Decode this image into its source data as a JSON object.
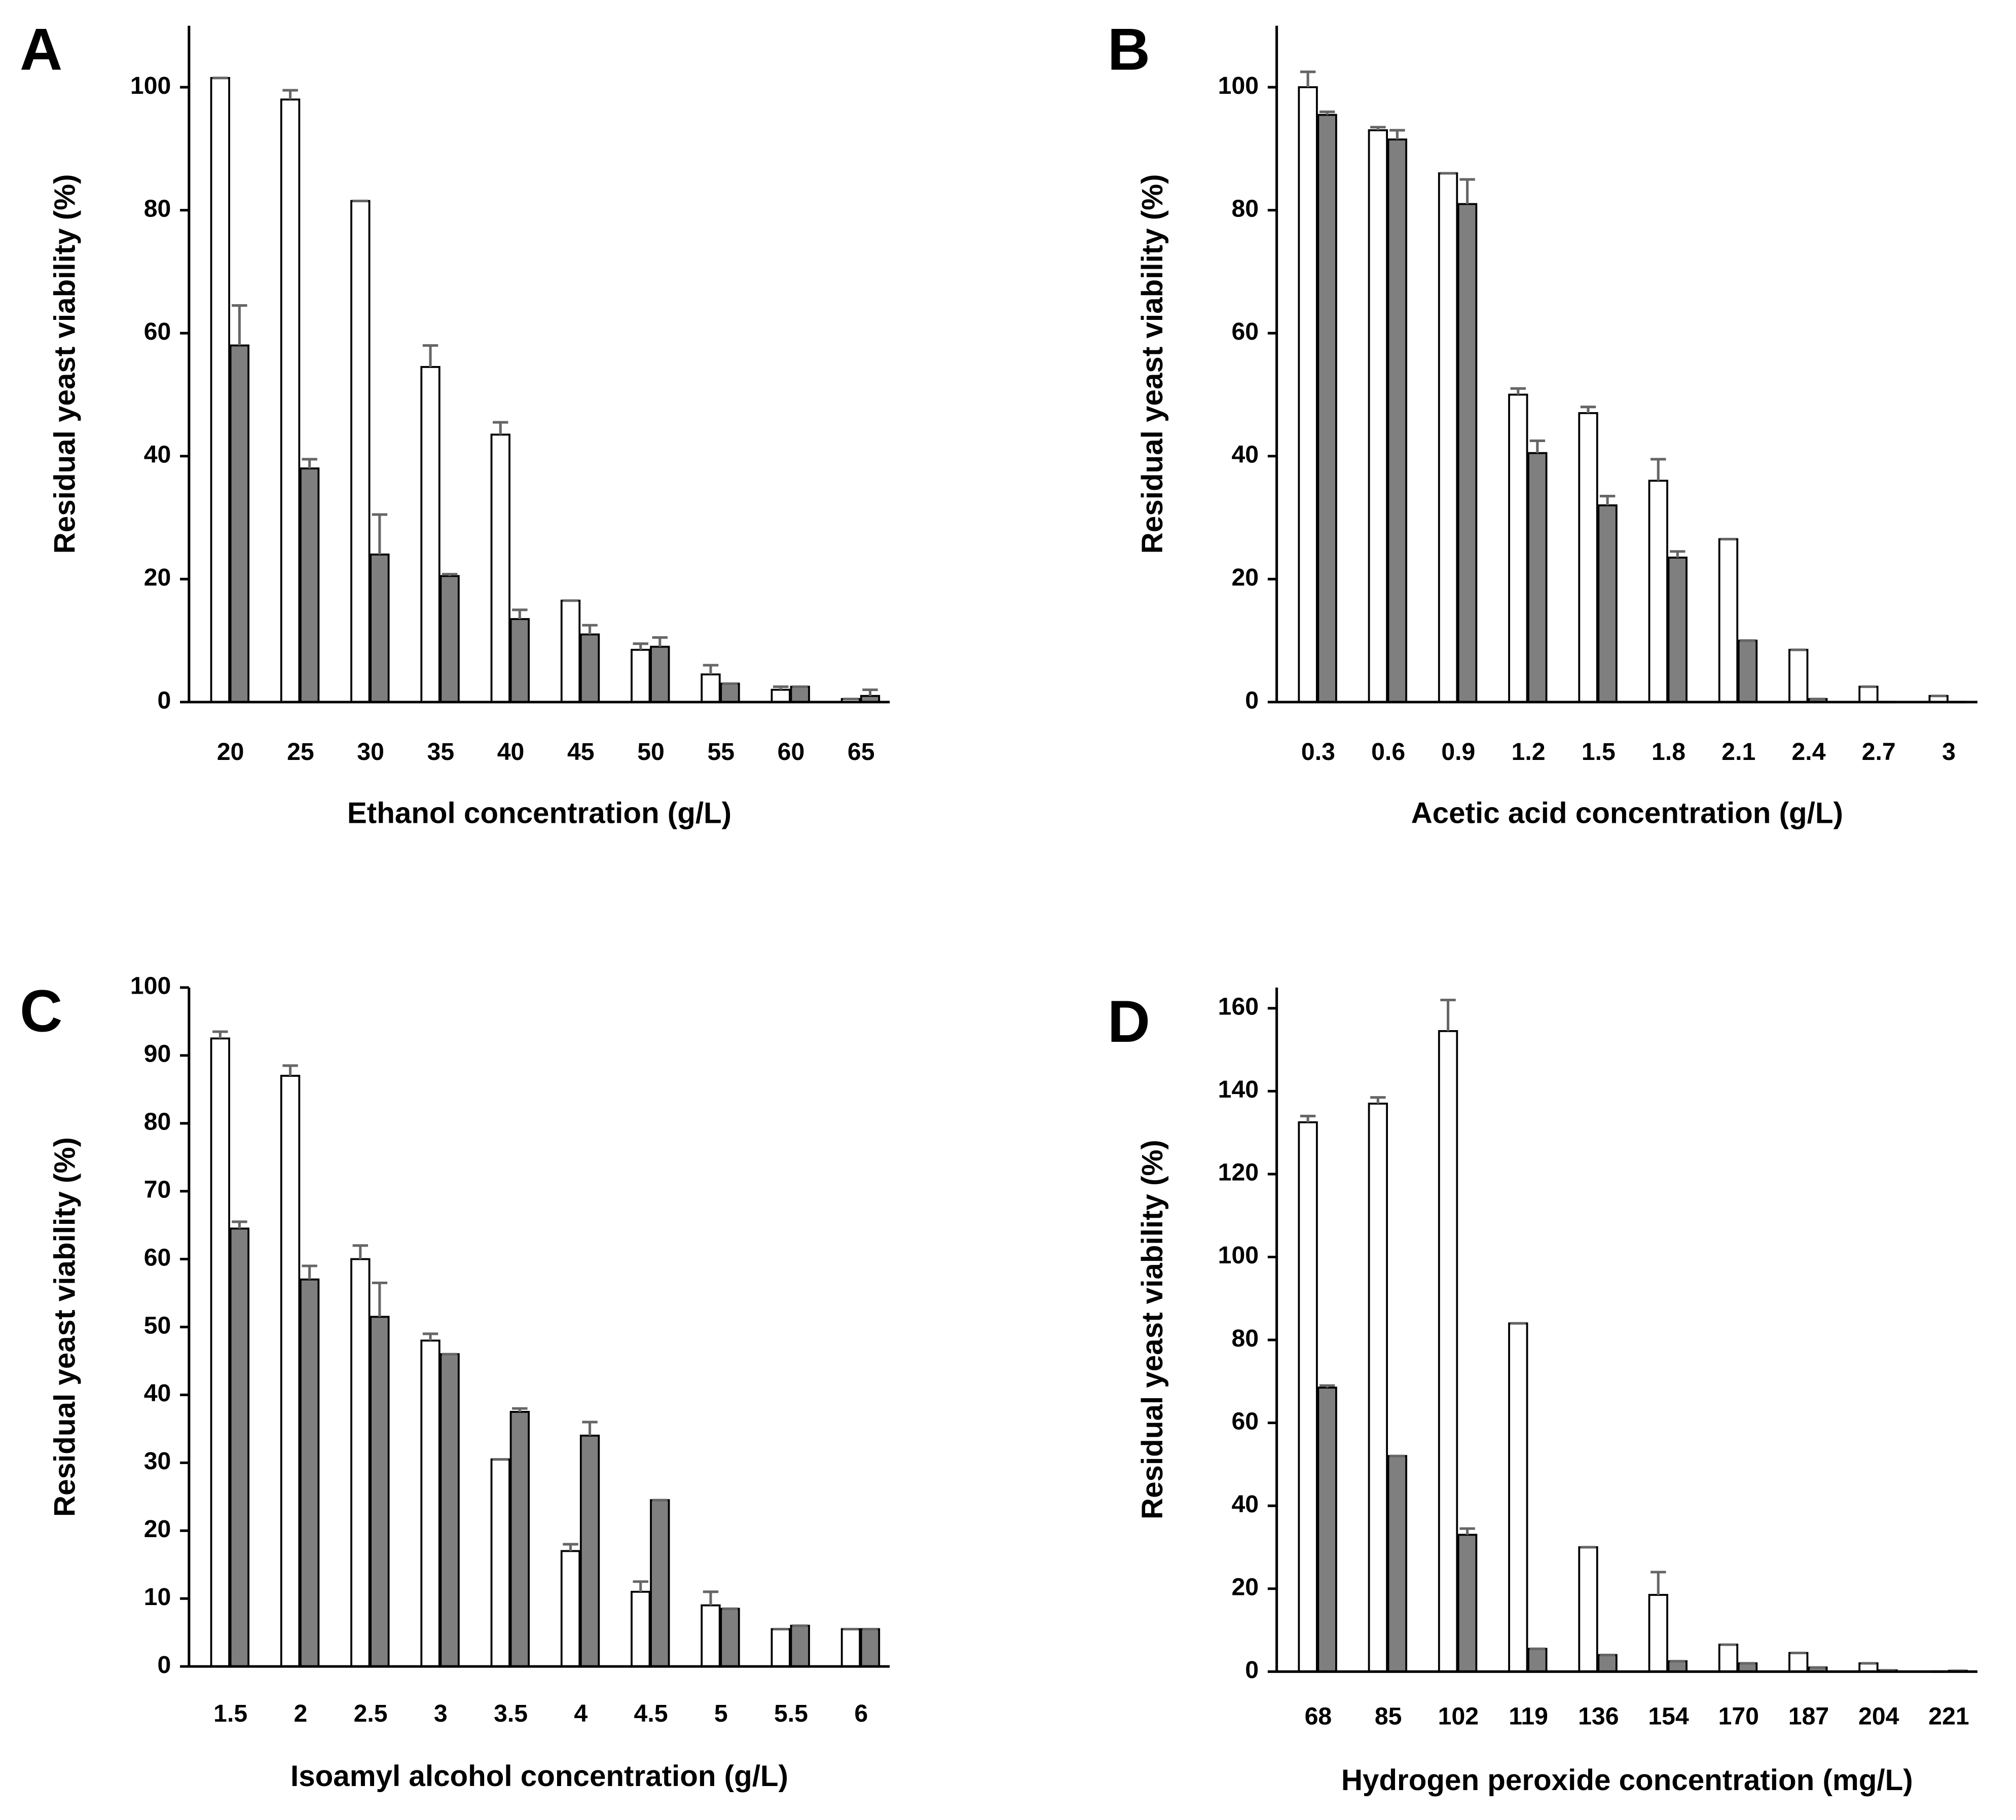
{
  "chart_data": [
    {
      "type": "bar",
      "panel": "A",
      "xlabel": "Ethanol concentration (g/L)",
      "ylabel": "Residual yeast  viability (%)",
      "categories": [
        "20",
        "25",
        "30",
        "35",
        "40",
        "45",
        "50",
        "55",
        "60",
        "65"
      ],
      "series": [
        {
          "color": "#ffffff",
          "values": [
            101.5,
            98,
            81.5,
            54.5,
            43.5,
            16.5,
            8.5,
            4.5,
            2,
            0.5
          ],
          "errors": [
            0,
            1.5,
            0,
            3.5,
            2,
            0,
            1,
            1.5,
            0.5,
            0
          ]
        },
        {
          "color": "#7f7f7f",
          "values": [
            58,
            38,
            24,
            20.5,
            13.5,
            11,
            9,
            3,
            2.5,
            1
          ],
          "errors": [
            6.5,
            1.5,
            6.5,
            0.3,
            1.5,
            1.5,
            1.5,
            0,
            0,
            1
          ]
        }
      ],
      "ylim": [
        0,
        110
      ],
      "yticks": [
        0,
        20,
        40,
        60,
        80,
        100
      ]
    },
    {
      "type": "bar",
      "panel": "B",
      "xlabel": "Acetic acid concentration (g/L)",
      "ylabel": "Residual  yeast  viability (%)",
      "categories": [
        "0.3",
        "0.6",
        "0.9",
        "1.2",
        "1.5",
        "1.8",
        "2.1",
        "2.4",
        "2.7",
        "3"
      ],
      "series": [
        {
          "color": "#ffffff",
          "values": [
            100,
            93,
            86,
            50,
            47,
            36,
            26.5,
            8.5,
            2.5,
            1
          ],
          "errors": [
            2.5,
            0.5,
            0,
            1,
            1,
            3.5,
            0,
            0,
            0,
            0
          ]
        },
        {
          "color": "#7f7f7f",
          "values": [
            95.5,
            91.5,
            81,
            40.5,
            32,
            23.5,
            10,
            0.5,
            0,
            0
          ],
          "errors": [
            0.5,
            1.5,
            4,
            2,
            1.5,
            1,
            0,
            0,
            0,
            0
          ]
        }
      ],
      "ylim": [
        0,
        110
      ],
      "yticks": [
        0,
        20,
        40,
        60,
        80,
        100
      ]
    },
    {
      "type": "bar",
      "panel": "C",
      "xlabel": "Isoamyl alcohol concentration (g/L)",
      "ylabel": "Residual yeast  viability (%)",
      "categories": [
        "1.5",
        "2",
        "2.5",
        "3",
        "3.5",
        "4",
        "4.5",
        "5",
        "5.5",
        "6"
      ],
      "series": [
        {
          "color": "#ffffff",
          "values": [
            92.5,
            87,
            60,
            48,
            30.5,
            17,
            11,
            9,
            5.5,
            5.5
          ],
          "errors": [
            1,
            1.5,
            2,
            1,
            0,
            1,
            1.5,
            2,
            0,
            0
          ]
        },
        {
          "color": "#7f7f7f",
          "values": [
            64.5,
            57,
            51.5,
            46,
            37.5,
            34,
            24.5,
            8.5,
            6,
            5.5
          ],
          "errors": [
            1,
            2,
            5,
            0,
            0.5,
            2,
            0,
            0,
            0,
            0
          ]
        }
      ],
      "ylim": [
        0,
        100
      ],
      "yticks": [
        0,
        10,
        20,
        30,
        40,
        50,
        60,
        70,
        80,
        90,
        100
      ]
    },
    {
      "type": "bar",
      "panel": "D",
      "xlabel": "Hydrogen peroxide concentration (mg/L)",
      "ylabel": "Residual  yeast  viability (%)",
      "categories": [
        "68",
        "85",
        "102",
        "119",
        "136",
        "154",
        "170",
        "187",
        "204",
        "221"
      ],
      "series": [
        {
          "color": "#ffffff",
          "values": [
            132.5,
            137,
            154.5,
            84,
            30,
            18.5,
            6.5,
            4.5,
            2,
            0
          ],
          "errors": [
            1.5,
            1.5,
            7.5,
            0,
            0,
            5.5,
            0,
            0,
            0,
            0
          ]
        },
        {
          "color": "#7f7f7f",
          "values": [
            68.5,
            52,
            33,
            5.5,
            4,
            2.5,
            2,
            1,
            0.3,
            0.2
          ],
          "errors": [
            0.5,
            0,
            1.5,
            0,
            0,
            0,
            0,
            0,
            0,
            0
          ]
        }
      ],
      "ylim": [
        0,
        165
      ],
      "yticks": [
        0,
        20,
        40,
        60,
        80,
        100,
        120,
        140,
        160
      ]
    }
  ]
}
